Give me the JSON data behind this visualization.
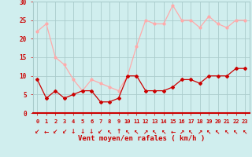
{
  "x": [
    0,
    1,
    2,
    3,
    4,
    5,
    6,
    7,
    8,
    9,
    10,
    11,
    12,
    13,
    14,
    15,
    16,
    17,
    18,
    19,
    20,
    21,
    22,
    23
  ],
  "wind_avg": [
    9,
    4,
    6,
    4,
    5,
    6,
    6,
    3,
    3,
    4,
    10,
    10,
    6,
    6,
    6,
    7,
    9,
    9,
    8,
    10,
    10,
    10,
    12,
    12
  ],
  "wind_gust": [
    22,
    24,
    15,
    13,
    9,
    6,
    9,
    8,
    7,
    6,
    10,
    18,
    25,
    24,
    24,
    29,
    25,
    25,
    23,
    26,
    24,
    23,
    25,
    25
  ],
  "avg_color": "#cc0000",
  "gust_color": "#ffaaaa",
  "bg_color": "#d0eeee",
  "grid_color": "#aacccc",
  "xlabel": "Vent moyen/en rafales ( km/h )",
  "ylim": [
    0,
    30
  ],
  "yticks": [
    0,
    5,
    10,
    15,
    20,
    25,
    30
  ],
  "xticks": [
    0,
    1,
    2,
    3,
    4,
    5,
    6,
    7,
    8,
    9,
    10,
    11,
    12,
    13,
    14,
    15,
    16,
    17,
    18,
    19,
    20,
    21,
    22,
    23
  ],
  "arrow_chars": [
    "↙",
    "←",
    "↙",
    "↙",
    "↓",
    "↓",
    "↓",
    "↙",
    "↖",
    "↑",
    "↖",
    "↖",
    "↗",
    "↖",
    "↖",
    "←",
    "↗",
    "↖",
    "↗",
    "↖",
    "↖",
    "↖",
    "↖",
    "↖"
  ]
}
